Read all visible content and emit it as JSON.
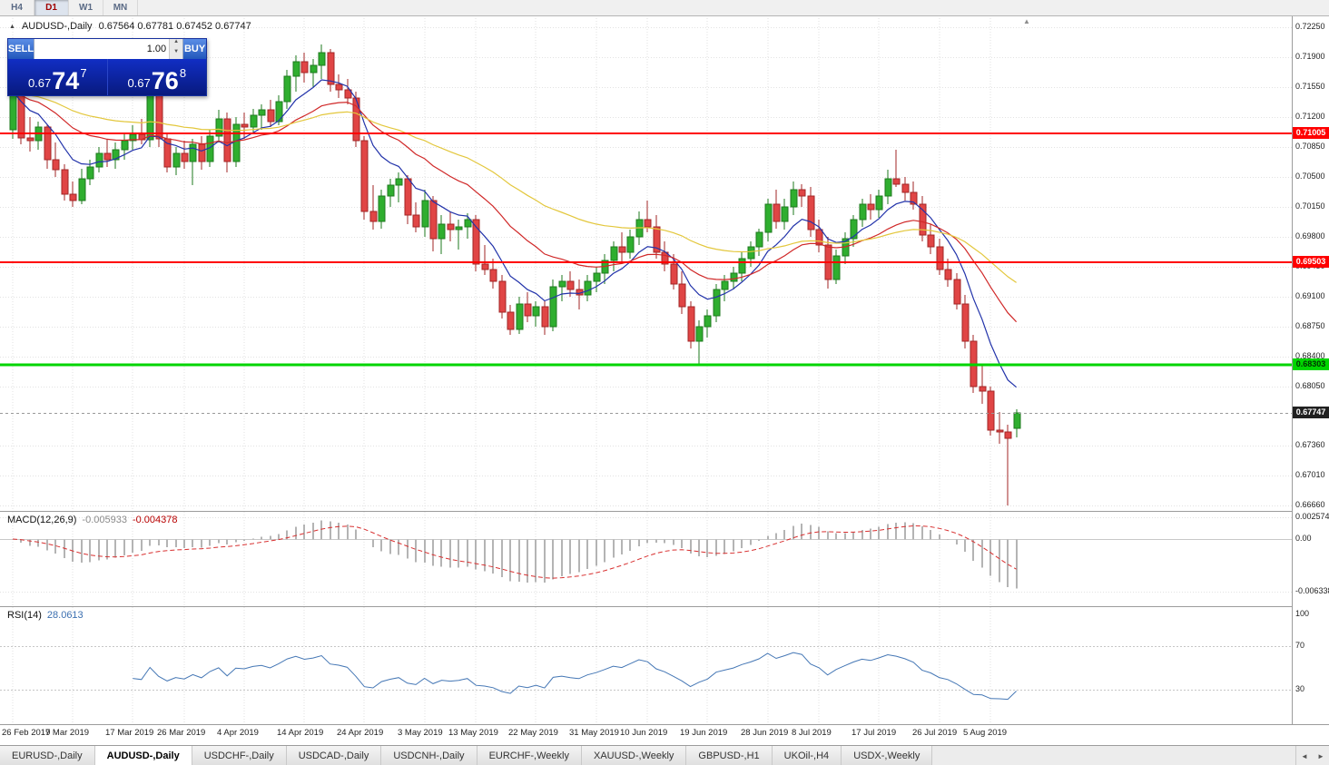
{
  "toolbar": {
    "periods": [
      {
        "label": "H4",
        "active": false
      },
      {
        "label": "D1",
        "active": true
      },
      {
        "label": "W1",
        "active": false
      },
      {
        "label": "MN",
        "active": false
      }
    ]
  },
  "chart": {
    "title_marker": "▲",
    "shift_marker": "▲",
    "title_symbol": "AUDUSD-,Daily",
    "title_ohlc": "0.67564 0.67781 0.67452 0.67747",
    "trade": {
      "sell_label": "SELL",
      "buy_label": "BUY",
      "volume": "1.00",
      "spin_up": "▲",
      "spin_down": "▼",
      "sell_price_prefix": "0.67",
      "sell_price_big": "74",
      "sell_price_sup": "7",
      "buy_price_prefix": "0.67",
      "buy_price_big": "76",
      "buy_price_sup": "8"
    }
  },
  "chart_data": {
    "type": "candlestick",
    "symbol": "AUDUSD-",
    "timeframe": "Daily",
    "ohlc": {
      "open": 0.67564,
      "high": 0.67781,
      "low": 0.67452,
      "close": 0.67747
    },
    "price_axis": {
      "max": 0.7225,
      "min": 0.6666,
      "labels": [
        "0.72250",
        "0.71900",
        "0.71550",
        "0.71200",
        "0.70850",
        "0.70500",
        "0.70150",
        "0.69800",
        "0.69450",
        "0.69100",
        "0.68750",
        "0.68400",
        "0.68050",
        "0.67360",
        "0.67010",
        "0.66660"
      ]
    },
    "hlines": [
      {
        "value": 0.71005,
        "label": "0.71005",
        "color": "#ff0000",
        "text_color": "#ffffff",
        "width": 2
      },
      {
        "value": 0.69503,
        "label": "0.69503",
        "color": "#ff0000",
        "text_color": "#ffffff",
        "width": 2
      },
      {
        "value": 0.68303,
        "label": "0.68303",
        "color": "#00d500",
        "text_color": "#003300",
        "width": 3
      }
    ],
    "current_price": {
      "value": 0.67747,
      "label": "0.67747",
      "badge_color": "#202020",
      "text_color": "#ffffff"
    },
    "colors": {
      "bull": "#2fae2f",
      "bull_border": "#1d7a1d",
      "bear": "#e04545",
      "bear_border": "#a22525"
    },
    "moving_averages": [
      {
        "period": 8,
        "color": "#2233aa"
      },
      {
        "period": 21,
        "color": "#d02828"
      },
      {
        "period": 45,
        "color": "#e3c73c"
      }
    ],
    "time_axis": [
      {
        "label": "26 Feb 2019",
        "i": 0
      },
      {
        "label": "7 Mar 2019",
        "i": 7
      },
      {
        "label": "17 Mar 2019",
        "i": 14
      },
      {
        "label": "26 Mar 2019",
        "i": 20
      },
      {
        "label": "4 Apr 2019",
        "i": 27
      },
      {
        "label": "14 Apr 2019",
        "i": 34
      },
      {
        "label": "24 Apr 2019",
        "i": 41
      },
      {
        "label": "3 May 2019",
        "i": 48
      },
      {
        "label": "13 May 2019",
        "i": 54
      },
      {
        "label": "22 May 2019",
        "i": 61
      },
      {
        "label": "31 May 2019",
        "i": 68
      },
      {
        "label": "10 Jun 2019",
        "i": 74
      },
      {
        "label": "19 Jun 2019",
        "i": 81
      },
      {
        "label": "28 Jun 2019",
        "i": 88
      },
      {
        "label": "8 Jul 2019",
        "i": 94
      },
      {
        "label": "17 Jul 2019",
        "i": 101
      },
      {
        "label": "26 Jul 2019",
        "i": 108
      },
      {
        "label": "5 Aug 2019",
        "i": 114
      }
    ],
    "candles": [
      [
        0.7105,
        0.716,
        0.7095,
        0.715
      ],
      [
        0.715,
        0.7158,
        0.7088,
        0.7096
      ],
      [
        0.7096,
        0.712,
        0.708,
        0.7092
      ],
      [
        0.7092,
        0.7115,
        0.7082,
        0.7108
      ],
      [
        0.7108,
        0.7112,
        0.706,
        0.707
      ],
      [
        0.707,
        0.709,
        0.705,
        0.7058
      ],
      [
        0.7058,
        0.7065,
        0.7022,
        0.703
      ],
      [
        0.703,
        0.7045,
        0.7015,
        0.7022
      ],
      [
        0.7022,
        0.706,
        0.7018,
        0.7048
      ],
      [
        0.7048,
        0.707,
        0.704,
        0.7062
      ],
      [
        0.7062,
        0.7085,
        0.7055,
        0.7078
      ],
      [
        0.7078,
        0.7095,
        0.7062,
        0.707
      ],
      [
        0.707,
        0.709,
        0.706,
        0.7082
      ],
      [
        0.7082,
        0.71,
        0.707,
        0.7092
      ],
      [
        0.7092,
        0.711,
        0.7082,
        0.71
      ],
      [
        0.71,
        0.7118,
        0.7088,
        0.7094
      ],
      [
        0.7094,
        0.7155,
        0.7085,
        0.7145
      ],
      [
        0.7145,
        0.715,
        0.7085,
        0.7095
      ],
      [
        0.7095,
        0.71,
        0.7055,
        0.7062
      ],
      [
        0.7062,
        0.7085,
        0.7052,
        0.7078
      ],
      [
        0.7078,
        0.7092,
        0.706,
        0.7068
      ],
      [
        0.7068,
        0.7095,
        0.704,
        0.7088
      ],
      [
        0.7088,
        0.7098,
        0.7058,
        0.7068
      ],
      [
        0.7068,
        0.7105,
        0.7062,
        0.7098
      ],
      [
        0.7098,
        0.7128,
        0.709,
        0.7118
      ],
      [
        0.7118,
        0.7125,
        0.7055,
        0.7068
      ],
      [
        0.7068,
        0.712,
        0.7062,
        0.7112
      ],
      [
        0.7112,
        0.7125,
        0.7095,
        0.7108
      ],
      [
        0.7108,
        0.713,
        0.71,
        0.7122
      ],
      [
        0.7122,
        0.7135,
        0.7105,
        0.7128
      ],
      [
        0.7128,
        0.714,
        0.7108,
        0.7115
      ],
      [
        0.7115,
        0.7145,
        0.711,
        0.7138
      ],
      [
        0.7138,
        0.7175,
        0.713,
        0.7168
      ],
      [
        0.7168,
        0.7192,
        0.715,
        0.7185
      ],
      [
        0.7185,
        0.7195,
        0.716,
        0.7172
      ],
      [
        0.7172,
        0.7188,
        0.7155,
        0.718
      ],
      [
        0.718,
        0.7205,
        0.7165,
        0.7195
      ],
      [
        0.7195,
        0.72,
        0.715,
        0.7158
      ],
      [
        0.7158,
        0.717,
        0.7142,
        0.7152
      ],
      [
        0.7152,
        0.7165,
        0.7135,
        0.7142
      ],
      [
        0.7142,
        0.715,
        0.7085,
        0.7092
      ],
      [
        0.7092,
        0.7098,
        0.7,
        0.701
      ],
      [
        0.701,
        0.704,
        0.6988,
        0.6998
      ],
      [
        0.6998,
        0.7035,
        0.699,
        0.7028
      ],
      [
        0.7028,
        0.7048,
        0.7015,
        0.704
      ],
      [
        0.704,
        0.7055,
        0.702,
        0.7048
      ],
      [
        0.7048,
        0.7052,
        0.6995,
        0.7005
      ],
      [
        0.7005,
        0.702,
        0.6985,
        0.6992
      ],
      [
        0.6992,
        0.7035,
        0.698,
        0.7022
      ],
      [
        0.7022,
        0.7028,
        0.6963,
        0.6978
      ],
      [
        0.6978,
        0.7005,
        0.696,
        0.6995
      ],
      [
        0.6995,
        0.701,
        0.6975,
        0.6988
      ],
      [
        0.6988,
        0.7,
        0.6965,
        0.6992
      ],
      [
        0.6992,
        0.7008,
        0.6978,
        0.7
      ],
      [
        0.7,
        0.7005,
        0.694,
        0.6948
      ],
      [
        0.6948,
        0.697,
        0.6935,
        0.6942
      ],
      [
        0.6942,
        0.6955,
        0.692,
        0.6928
      ],
      [
        0.6928,
        0.6935,
        0.6885,
        0.6892
      ],
      [
        0.6892,
        0.69,
        0.6865,
        0.6872
      ],
      [
        0.6872,
        0.691,
        0.6866,
        0.6902
      ],
      [
        0.6902,
        0.6915,
        0.688,
        0.6888
      ],
      [
        0.6888,
        0.6905,
        0.6875,
        0.6898
      ],
      [
        0.6898,
        0.6905,
        0.6865,
        0.6875
      ],
      [
        0.6875,
        0.693,
        0.687,
        0.6922
      ],
      [
        0.6922,
        0.6935,
        0.6905,
        0.6928
      ],
      [
        0.6928,
        0.694,
        0.691,
        0.6918
      ],
      [
        0.6918,
        0.693,
        0.6895,
        0.6912
      ],
      [
        0.6912,
        0.6935,
        0.6905,
        0.6928
      ],
      [
        0.6928,
        0.6945,
        0.6915,
        0.6938
      ],
      [
        0.6938,
        0.696,
        0.6925,
        0.6952
      ],
      [
        0.6952,
        0.6975,
        0.694,
        0.6968
      ],
      [
        0.6968,
        0.6985,
        0.695,
        0.6962
      ],
      [
        0.6962,
        0.6988,
        0.6955,
        0.698
      ],
      [
        0.698,
        0.701,
        0.697,
        0.7
      ],
      [
        0.7,
        0.7022,
        0.6985,
        0.6992
      ],
      [
        0.6992,
        0.7005,
        0.6955,
        0.6962
      ],
      [
        0.6962,
        0.6975,
        0.694,
        0.6948
      ],
      [
        0.6948,
        0.696,
        0.6918,
        0.6925
      ],
      [
        0.6925,
        0.694,
        0.689,
        0.6898
      ],
      [
        0.6898,
        0.6905,
        0.685,
        0.6858
      ],
      [
        0.6858,
        0.6882,
        0.6832,
        0.6875
      ],
      [
        0.6875,
        0.6895,
        0.6862,
        0.6888
      ],
      [
        0.6888,
        0.6925,
        0.688,
        0.6918
      ],
      [
        0.6918,
        0.6935,
        0.6905,
        0.6928
      ],
      [
        0.6928,
        0.6945,
        0.6918,
        0.6938
      ],
      [
        0.6938,
        0.6962,
        0.6928,
        0.6955
      ],
      [
        0.6955,
        0.6975,
        0.6945,
        0.6968
      ],
      [
        0.6968,
        0.699,
        0.6958,
        0.6985
      ],
      [
        0.6985,
        0.7025,
        0.6975,
        0.7018
      ],
      [
        0.7018,
        0.7035,
        0.699,
        0.6998
      ],
      [
        0.6998,
        0.7025,
        0.6988,
        0.7015
      ],
      [
        0.7015,
        0.7045,
        0.7005,
        0.7035
      ],
      [
        0.7035,
        0.7042,
        0.7015,
        0.7028
      ],
      [
        0.7028,
        0.7038,
        0.698,
        0.6988
      ],
      [
        0.6988,
        0.7,
        0.6962,
        0.697
      ],
      [
        0.697,
        0.698,
        0.692,
        0.693
      ],
      [
        0.693,
        0.6965,
        0.6925,
        0.6958
      ],
      [
        0.6958,
        0.6985,
        0.6948,
        0.6978
      ],
      [
        0.6978,
        0.7005,
        0.6968,
        0.7
      ],
      [
        0.7,
        0.7025,
        0.6992,
        0.7018
      ],
      [
        0.7018,
        0.703,
        0.7,
        0.7012
      ],
      [
        0.7012,
        0.7035,
        0.7002,
        0.7028
      ],
      [
        0.7028,
        0.7058,
        0.7018,
        0.7048
      ],
      [
        0.7048,
        0.7082,
        0.7038,
        0.7042
      ],
      [
        0.7042,
        0.705,
        0.7022,
        0.7032
      ],
      [
        0.7032,
        0.7045,
        0.7012,
        0.7018
      ],
      [
        0.7018,
        0.7028,
        0.6975,
        0.6982
      ],
      [
        0.6982,
        0.6995,
        0.696,
        0.6968
      ],
      [
        0.6968,
        0.6978,
        0.6935,
        0.6942
      ],
      [
        0.6942,
        0.6955,
        0.6922,
        0.693
      ],
      [
        0.693,
        0.6938,
        0.6895,
        0.6902
      ],
      [
        0.6902,
        0.6912,
        0.685,
        0.6858
      ],
      [
        0.6858,
        0.6865,
        0.6798,
        0.6805
      ],
      [
        0.6805,
        0.683,
        0.6785,
        0.68
      ],
      [
        0.68,
        0.6805,
        0.6748,
        0.6754
      ],
      [
        0.6754,
        0.6775,
        0.6738,
        0.6752
      ],
      [
        0.6752,
        0.676,
        0.6666,
        0.6745
      ],
      [
        0.67564,
        0.67781,
        0.67452,
        0.67747
      ]
    ],
    "macd": {
      "label": "MACD(12,26,9)",
      "value_main": "-0.005933",
      "value_signal": "-0.004378",
      "params": [
        12,
        26,
        9
      ],
      "hist_color": "#b4b4b4",
      "signal_color": "#d83030",
      "axis": [
        {
          "label": "0.002574",
          "value": 0.002574
        },
        {
          "label": "0.00",
          "value": 0
        },
        {
          "label": "-0.006338",
          "value": -0.006338
        }
      ]
    },
    "rsi": {
      "label": "RSI(14)",
      "value": "28.0613",
      "period": 14,
      "color": "#4577b5",
      "levels": [
        70,
        30
      ],
      "axis": [
        {
          "label": "100",
          "value": 100
        },
        {
          "label": "70",
          "value": 70
        },
        {
          "label": "30",
          "value": 30
        }
      ]
    }
  },
  "tabs": {
    "nav_left": "◄",
    "nav_right": "►",
    "items": [
      {
        "label": "EURUSD-,Daily",
        "active": false
      },
      {
        "label": "AUDUSD-,Daily",
        "active": true
      },
      {
        "label": "USDCHF-,Daily",
        "active": false
      },
      {
        "label": "USDCAD-,Daily",
        "active": false
      },
      {
        "label": "USDCNH-,Daily",
        "active": false
      },
      {
        "label": "EURCHF-,Weekly",
        "active": false
      },
      {
        "label": "XAUUSD-,Weekly",
        "active": false
      },
      {
        "label": "GBPUSD-,H1",
        "active": false
      },
      {
        "label": "UKOil-,H4",
        "active": false
      },
      {
        "label": "USDX-,Weekly",
        "active": false
      }
    ]
  }
}
